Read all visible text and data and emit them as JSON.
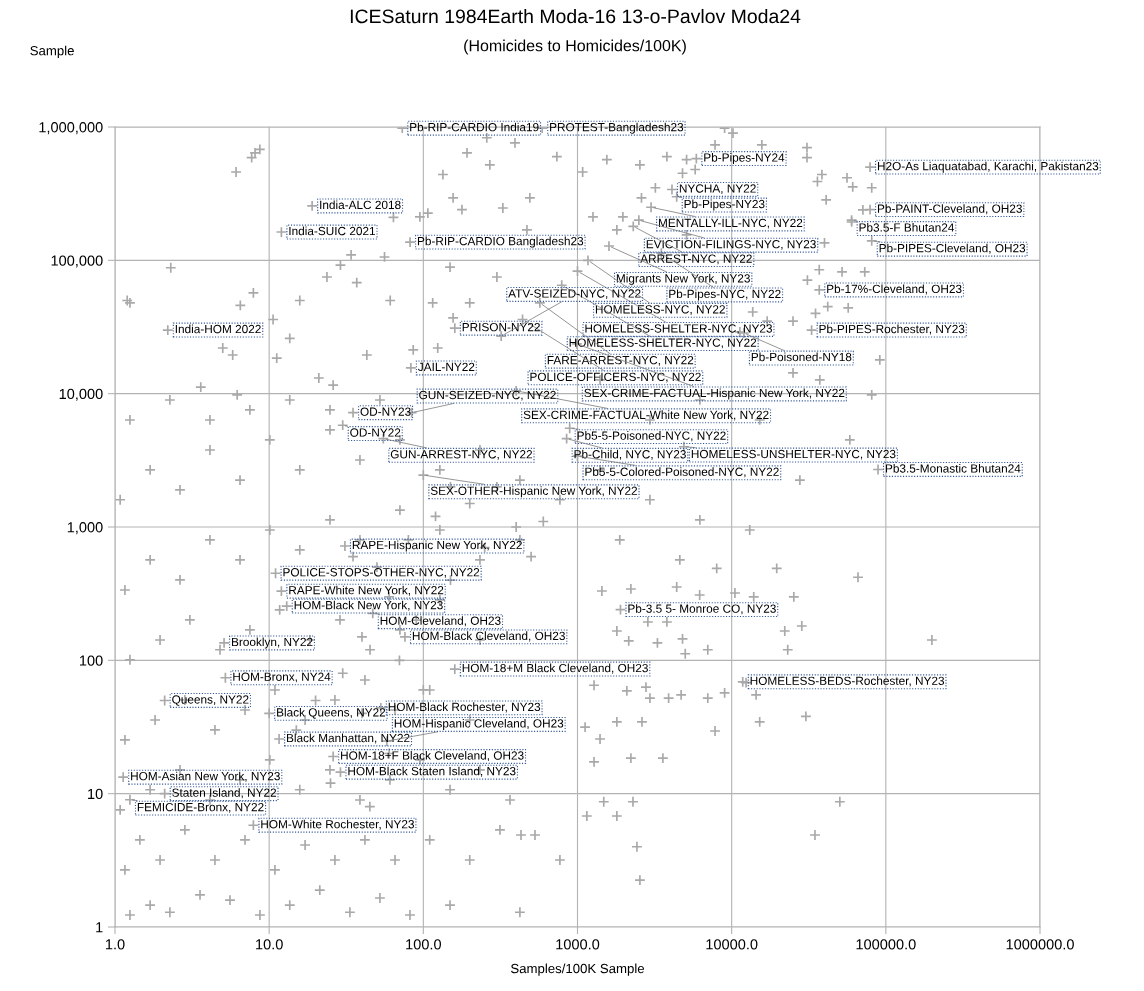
{
  "chart_data": {
    "type": "scatter",
    "title": "ICESaturn 1984Earth Moda-16 13-o-Pavlov Moda24",
    "subtitle": "(Homicides to Homicides/100K)",
    "xlabel": "Samples/100K Sample",
    "ylabel": "Sample",
    "log": "xy",
    "grid": true,
    "marker": "cross",
    "xlim": [
      1,
      1000000
    ],
    "ylim": [
      1,
      1000000
    ],
    "xticks": [
      {
        "value": 1,
        "label": "1.0"
      },
      {
        "value": 10,
        "label": "10.0"
      },
      {
        "value": 100,
        "label": "100.0"
      },
      {
        "value": 1000,
        "label": "1000.0"
      },
      {
        "value": 10000,
        "label": "10000.0"
      },
      {
        "value": 100000,
        "label": "100000.0"
      },
      {
        "value": 1000000,
        "label": "1000000.0"
      }
    ],
    "yticks": [
      1,
      10,
      100,
      {
        "value": 1000,
        "label": "1,000"
      },
      {
        "value": 10000,
        "label": "10,000"
      },
      {
        "value": 100000,
        "label": "100,000"
      },
      {
        "value": 1000000,
        "label": "1,000,000"
      }
    ],
    "series": [
      {
        "color": "#a9a9a9",
        "x": [
          8.1,
          7.7,
          8.7,
          6.1,
          1.2,
          2.3,
          5.8,
          10.6,
          15.8,
          23.7,
          34,
          64,
          134,
          192,
          258,
          393,
          270,
          156,
          178,
          328,
          491,
          735,
          1080,
          470,
          149,
          300,
          95,
          107,
          56,
          29,
          37,
          61,
          115,
          200,
          156,
          124,
          86,
          43,
          21,
          26,
          6.2,
          3.6,
          1.25,
          6.5,
          7.9,
          5,
          11.2,
          13.6
        ],
        "values": [
          640000,
          590000,
          680000,
          460000,
          50000,
          88000,
          19500,
          36000,
          50000,
          75000,
          110000,
          210000,
          440000,
          640000,
          830000,
          760000,
          520000,
          294000,
          240000,
          247000,
          294000,
          600000,
          460000,
          169000,
          89000,
          75000,
          212000,
          226000,
          106000,
          92000,
          68000,
          50000,
          48000,
          48000,
          37000,
          22000,
          21300,
          19500,
          13100,
          11600,
          9800,
          11200,
          48000,
          46000,
          57000,
          22000,
          18500,
          26000
        ]
      },
      {
        "color": "#a9a9a9",
        "x": [
          9000,
          10200,
          7800,
          15700,
          30800,
          30800,
          1550,
          3800,
          5100,
          2540,
          4800,
          5800,
          38500,
          36000,
          56000,
          61000,
          81000,
          3200,
          2600,
          1260,
          1970,
          1800,
          5100,
          41000,
          71000,
          60000,
          40000,
          37000,
          52000,
          73000,
          31000,
          42000,
          57000,
          35000,
          17000,
          25000,
          13700,
          11300,
          81000,
          25000
        ],
        "values": [
          980000,
          900000,
          735000,
          735000,
          700000,
          590000,
          570000,
          600000,
          570000,
          520000,
          450000,
          480000,
          440000,
          390000,
          416000,
          356000,
          350000,
          350000,
          294000,
          212000,
          212000,
          169000,
          155000,
          284000,
          239000,
          194000,
          135000,
          85000,
          82000,
          82000,
          71000,
          45000,
          44000,
          40000,
          35000,
          35000,
          41000,
          29000,
          9800,
          14300
        ]
      },
      {
        "color": "#a9a9a9",
        "x": [
          199000,
          66000,
          19600,
          28500,
          23100,
          22100,
          7000,
          3300,
          4800,
          5000,
          2150,
          3800,
          2860,
          1800,
          1440,
          2220,
          4400,
          6200,
          13900,
          25300,
          10500,
          8000,
          12400,
          14400,
          9000,
          7000,
          4700,
          3900,
          2950,
          2090,
          2780,
          1280,
          30300,
          15200,
          7800,
          2620,
          1800,
          1120,
          1400,
          2220,
          3580,
          1280,
          50300,
          2290,
          1480,
          1800,
          1150,
          34700,
          530,
          430,
          2430
        ],
        "values": [
          142,
          420,
          490,
          181,
          120,
          166,
          120,
          135,
          145,
          112,
          140,
          194,
          194,
          166,
          331,
          343,
          355,
          309,
          299,
          299,
          320,
          490,
          68,
          55,
          57,
          52,
          55,
          52,
          52,
          59,
          63,
          65,
          38,
          34.5,
          29.5,
          34.5,
          34.5,
          31.6,
          25.7,
          18.5,
          18.5,
          17.3,
          8.7,
          8.7,
          8.7,
          6.8,
          6.8,
          4.9,
          4.9,
          4.9,
          4
        ]
      },
      {
        "color": "#a9a9a9",
        "x": [
          1.25,
          1.69,
          2.27,
          3.56,
          5.57,
          8.71,
          13.6,
          21.3,
          33.4,
          52.3,
          81.9,
          149,
          423,
          769,
          2540,
          1.16,
          1.45,
          1.96,
          2.84,
          4.45,
          6.97,
          10.9,
          17.1,
          26.7,
          41.8,
          65.5,
          110,
          200,
          314,
          1.08,
          1.69,
          2.64,
          4.13,
          6.47,
          10.1,
          15.8,
          24.8,
          38.8,
          60.7,
          95.1,
          149,
          233,
          365,
          1.16,
          1.82,
          2.84,
          4.45,
          6.97,
          10.9,
          17.1,
          26.7,
          41.8,
          65.5,
          110,
          200,
          1.25,
          1.96,
          3.06,
          4.8,
          7.5,
          11.7,
          18.4,
          28.8,
          45.1,
          70.5,
          128,
          233,
          1.16,
          1.69,
          2.64,
          4.13,
          6.47,
          10.1,
          15.8,
          24.8,
          38.8,
          70.5,
          128,
          233,
          423,
          1.08,
          1.69,
          2.64,
          4.13,
          6.47,
          10.1,
          15.8,
          24.8,
          38.8,
          70.5,
          128,
          233,
          423,
          769,
          1.25,
          2.27,
          4.13,
          7.5,
          13.6,
          24.8,
          52.3,
          1400,
          2950,
          6220,
          1880,
          4610,
          13100,
          27700,
          58400,
          15200,
          37300,
          91400,
          6220,
          2950,
          1400
        ],
        "values": [
          1.23,
          1.46,
          1.29,
          1.74,
          1.59,
          1.23,
          1.46,
          1.89,
          1.29,
          1.65,
          1.23,
          1.46,
          1.29,
          3.18,
          2.25,
          2.68,
          4.5,
          3.18,
          5.35,
          3.18,
          4.5,
          2.68,
          4.12,
          3.18,
          4.5,
          3.18,
          4.5,
          3.18,
          5.35,
          7.55,
          10.7,
          15.1,
          8.97,
          12.7,
          17.9,
          10.7,
          15.1,
          8.97,
          12.7,
          17.9,
          10.7,
          15.1,
          8.97,
          25.3,
          35.7,
          50.4,
          30.1,
          42.4,
          59.9,
          35.7,
          50.4,
          71.2,
          42.4,
          59.9,
          35.7,
          101,
          142,
          201,
          120,
          169,
          239,
          142,
          201,
          120,
          169,
          284,
          142,
          337,
          566,
          401,
          800,
          566,
          950,
          673,
          1130,
          800,
          1340,
          950,
          566,
          800,
          1600,
          2680,
          1900,
          3780,
          2250,
          4500,
          2680,
          5350,
          3180,
          4500,
          2680,
          3780,
          2250,
          1600,
          6350,
          8970,
          6350,
          7550,
          8970,
          7550,
          8970,
          2680,
          1600,
          1130,
          800,
          566,
          950,
          2250,
          4500,
          6350,
          12700,
          17900,
          8970,
          6350,
          12700
        ]
      },
      {
        "color": "#a9a9a9",
        "x": [
          50,
          80,
          120,
          200,
          300,
          60,
          90,
          150,
          250,
          40,
          70,
          100,
          30,
          20,
          15,
          40,
          60,
          25,
          45,
          400,
          600,
          150,
          35,
          500
        ],
        "values": [
          500,
          800,
          1200,
          1500,
          2000,
          300,
          200,
          400,
          700,
          150,
          100,
          60,
          80,
          50,
          30,
          40,
          20,
          12,
          8,
          1000,
          1100,
          2000,
          600,
          600
        ]
      },
      {
        "color": "#a9a9a9",
        "x": [
          73,
          590,
          5900,
          79000,
          4100,
          4400,
          3000,
          2500,
          2300,
          79000,
          60000,
          81000,
          1600,
          3500,
          1170,
          1000,
          790,
          570,
          37000,
          440,
          160,
          320,
          12000,
          33000,
          990,
          2.2,
          19,
          12,
          82,
          83,
          400,
          35,
          84,
          30,
          890,
          55,
          850,
          4900,
          1000,
          89000,
          100,
          31,
          11,
          12,
          13,
          47,
          1900,
          76,
          160,
          11800,
          5.2,
          2.1,
          53,
          10,
          11.6,
          58,
          26,
          29,
          1.13,
          2.1,
          1.25,
          7.9,
          5.1
        ],
        "values": [
          980000,
          980000,
          580000,
          500000,
          340000,
          300000,
          250000,
          200000,
          180000,
          240000,
          200000,
          140000,
          128000,
          113000,
          100000,
          83000,
          65000,
          48000,
          60000,
          36000,
          31000,
          27000,
          28500,
          30000,
          23600,
          30000,
          256000,
          163000,
          137000,
          15600,
          10500,
          7200,
          7200,
          5800,
          5500,
          4600,
          4600,
          4000,
          3400,
          2700,
          2450,
          720,
          450,
          330,
          255,
          225,
          240,
          150,
          86,
          69,
          74,
          50,
          44,
          40,
          25.7,
          24.8,
          19,
          14.5,
          13.3,
          10,
          9,
          5.8,
          135
        ]
      }
    ],
    "annotations": [
      {
        "text": "Pb-RIP-CARDIO India19",
        "x": 73,
        "y": 980000
      },
      {
        "text": "PROTEST-Bangladesh23",
        "x": 590,
        "y": 980000
      },
      {
        "text": "Pb-Pipes-NY24",
        "x": 5900,
        "y": 580000
      },
      {
        "text": "H2O-As Liaquatabad, Karachi, Pakistan23",
        "x": 79000,
        "y": 500000
      },
      {
        "text": "NYCHA, NY22",
        "x": 4100,
        "y": 340000
      },
      {
        "text": "Pb-Pipes-NY23",
        "x": 4400,
        "y": 300000
      },
      {
        "text": "MENTALLY-ILL-NYC, NY22",
        "x": 3000,
        "y": 250000
      },
      {
        "text": "EVICTION-FILINGS-NYC, NY23",
        "x": 2500,
        "y": 200000
      },
      {
        "text": "ARREST-NYC, NY22",
        "x": 2300,
        "y": 180000
      },
      {
        "text": "Pb-PAINT-Cleveland, OH23",
        "x": 79000,
        "y": 240000
      },
      {
        "text": "Pb3.5-F Bhutan24",
        "x": 60000,
        "y": 200000
      },
      {
        "text": "Pb-PIPES-Cleveland, OH23",
        "x": 81000,
        "y": 140000
      },
      {
        "text": "Migrants New York, NY23",
        "x": 1600,
        "y": 128000
      },
      {
        "text": "Pb-Pipes-NYC, NY22",
        "x": 3500,
        "y": 113000
      },
      {
        "text": "HOMELESS-NYC, NY22",
        "x": 1170,
        "y": 100000
      },
      {
        "text": "HOMELESS-SHELTER-NYC, NY23",
        "x": 1000,
        "y": 83000
      },
      {
        "text": "HOMELESS-SHELTER-NYC, NY22",
        "x": 790,
        "y": 65000
      },
      {
        "text": "FARE-ARREST-NYC, NY22",
        "x": 570,
        "y": 48000
      },
      {
        "text": "Pb-17%-Cleveland, OH23",
        "x": 37000,
        "y": 60000
      },
      {
        "text": "POLICE-OFFICERS-NYC, NY22",
        "x": 440,
        "y": 36000
      },
      {
        "text": "PRISON-NY22",
        "x": 160,
        "y": 31000
      },
      {
        "text": "ATV-SEIZED-NYC, NY22",
        "x": 320,
        "y": 27000
      },
      {
        "text": "Pb-Poisoned-NY18",
        "x": 12000,
        "y": 28500
      },
      {
        "text": "Pb-PIPES-Rochester, NY23",
        "x": 33000,
        "y": 30000
      },
      {
        "text": "SEX-CRIME-FACTUAL-Hispanic New York, NY22",
        "x": 990,
        "y": 23600
      },
      {
        "text": "India-HOM 2022",
        "x": 2.2,
        "y": 30000
      },
      {
        "text": "India-ALC 2018",
        "x": 19,
        "y": 256000
      },
      {
        "text": "India-SUIC 2021",
        "x": 12,
        "y": 163000
      },
      {
        "text": "Pb-RIP-CARDIO Bangladesh23",
        "x": 82,
        "y": 137000
      },
      {
        "text": "JAIL-NY22",
        "x": 83,
        "y": 15600
      },
      {
        "text": "SEX-CRIME-FACTUAL-White New York, NY22",
        "x": 400,
        "y": 10500
      },
      {
        "text": "OD-NY23",
        "x": 35,
        "y": 7200
      },
      {
        "text": "GUN-SEIZED-NYC, NY22",
        "x": 84,
        "y": 7200
      },
      {
        "text": "OD-NY22",
        "x": 30,
        "y": 5800
      },
      {
        "text": "Pb5-5-Poisoned-NYC, NY22",
        "x": 890,
        "y": 5500
      },
      {
        "text": "GUN-ARREST-NYC, NY22",
        "x": 55,
        "y": 4600
      },
      {
        "text": "Pb-Child, NYC, NY23",
        "x": 850,
        "y": 4600
      },
      {
        "text": "HOMELESS-UNSHELTER-NYC, NY23",
        "x": 4900,
        "y": 4000
      },
      {
        "text": "Pb5-5-Colored-Poisoned-NYC, NY22",
        "x": 1000,
        "y": 3400
      },
      {
        "text": "Pb3.5-Monastic Bhutan24",
        "x": 89000,
        "y": 2700
      },
      {
        "text": "SEX-OTHER-Hispanic New York, NY22",
        "x": 100,
        "y": 2450
      },
      {
        "text": "RAPE-Hispanic New York, NY22",
        "x": 31,
        "y": 720
      },
      {
        "text": "POLICE-STOPS-OTHER-NYC, NY22",
        "x": 11,
        "y": 450
      },
      {
        "text": "RAPE-White New York, NY22",
        "x": 12,
        "y": 330
      },
      {
        "text": "HOM-Black New York, NY23",
        "x": 13,
        "y": 255
      },
      {
        "text": "HOM-Cleveland, OH23",
        "x": 47,
        "y": 225
      },
      {
        "text": "Pb-3.5 5- Monroe CO, NY23",
        "x": 1900,
        "y": 240
      },
      {
        "text": "HOM-Black Cleveland, OH23",
        "x": 76,
        "y": 150
      },
      {
        "text": "HOM-18+M Black Cleveland, OH23",
        "x": 160,
        "y": 86
      },
      {
        "text": "HOMELESS-BEDS-Rochester, NY23",
        "x": 11800,
        "y": 69
      },
      {
        "text": "HOM-Bronx, NY24",
        "x": 5.2,
        "y": 74
      },
      {
        "text": "Queens, NY22",
        "x": 2.1,
        "y": 50
      },
      {
        "text": "HOM-Black Rochester, NY23",
        "x": 53,
        "y": 44
      },
      {
        "text": "Black Queens, NY22",
        "x": 10,
        "y": 40
      },
      {
        "text": "Black Manhattan, NY22",
        "x": 11.6,
        "y": 25.7
      },
      {
        "text": "HOM-Hispanic Cleveland, OH23",
        "x": 58,
        "y": 24.8
      },
      {
        "text": "HOM-18+F Black Cleveland, OH23",
        "x": 26,
        "y": 19
      },
      {
        "text": "HOM-Black Staten Island, NY23",
        "x": 29,
        "y": 14.5
      },
      {
        "text": "HOM-Asian New York, NY23",
        "x": 1.13,
        "y": 13.3
      },
      {
        "text": "Staten Island, NY22",
        "x": 2.1,
        "y": 10
      },
      {
        "text": "FEMICIDE-Bronx, NY22",
        "x": 1.25,
        "y": 9
      },
      {
        "text": "HOM-White Rochester, NY23",
        "x": 7.9,
        "y": 5.8
      },
      {
        "text": "Brooklyn, NY22",
        "x": 5.1,
        "y": 135
      }
    ]
  }
}
